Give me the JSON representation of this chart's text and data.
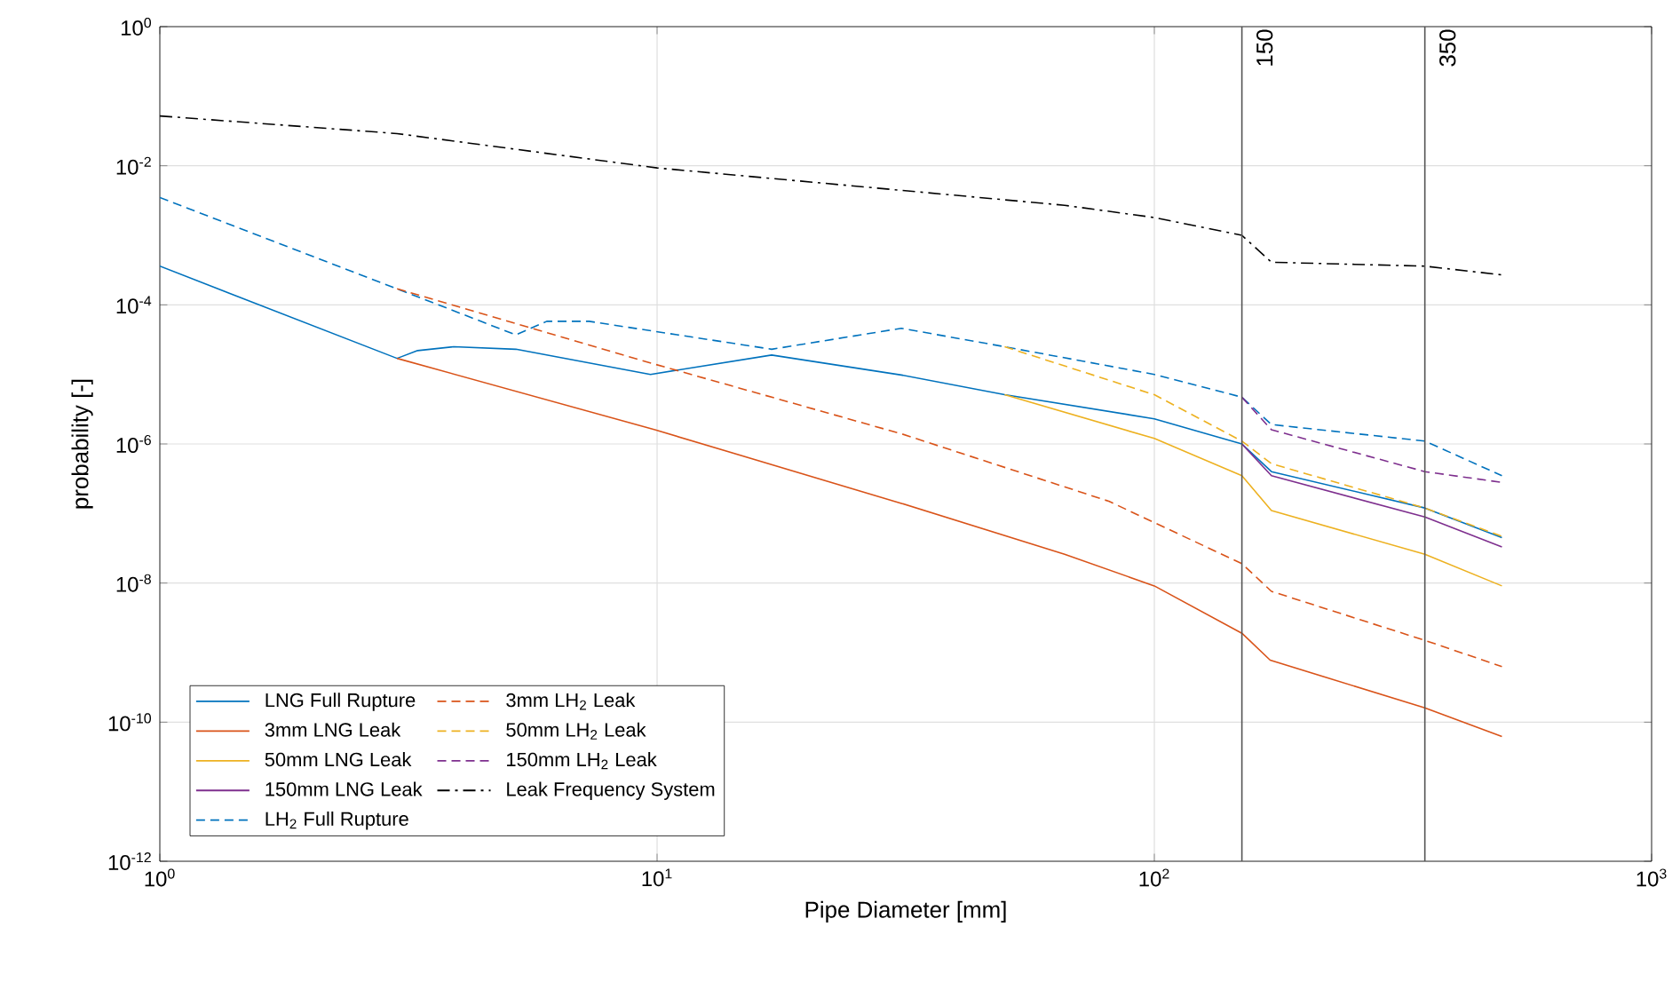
{
  "chart_data": {
    "type": "line",
    "xlabel": "Pipe Diameter [mm]",
    "ylabel": "probability [-]",
    "log": "xy",
    "grid": true,
    "legend": "bottom left",
    "xlim": [
      1,
      1000
    ],
    "ylim": [
      1e-12,
      1
    ],
    "xticks": [
      {
        "value": 1,
        "label": "10$^{0}$"
      },
      {
        "value": 10,
        "label": "10$^{1}$"
      },
      {
        "value": 100,
        "label": "10$^{2}$"
      },
      {
        "value": 1000,
        "label": "10$^{3}$"
      }
    ],
    "yticks": [
      {
        "value": 1e-12,
        "label": "10$^{-12}$"
      },
      {
        "value": 1e-10,
        "label": "10$^{-10}$"
      },
      {
        "value": 1e-08,
        "label": "10$^{-8}$"
      },
      {
        "value": 1e-06,
        "label": "10$^{-6}$"
      },
      {
        "value": 0.0001,
        "label": "10$^{-4}$"
      },
      {
        "value": 0.01,
        "label": "10$^{-2}$"
      },
      {
        "value": 1,
        "label": "10$^{0}$"
      }
    ],
    "ref_lines": [
      {
        "axis": "x",
        "value": 150,
        "label": "150",
        "color": "#555555"
      },
      {
        "axis": "x",
        "value": 350,
        "label": "350",
        "color": "#555555"
      }
    ],
    "series": [
      {
        "name": "LNG Full Rupture",
        "color": "#0072bd",
        "line_style": "solid",
        "x": [
          1,
          3,
          3.3,
          3.9,
          5.2,
          9.7,
          17,
          31,
          50,
          100,
          150,
          172,
          350,
          500
        ],
        "values": [
          0.00036,
          1.7e-05,
          2.2e-05,
          2.5e-05,
          2.3e-05,
          1e-05,
          1.9e-05,
          9.8e-06,
          5.1e-06,
          2.3e-06,
          1e-06,
          4e-07,
          1.2e-07,
          4.5e-08
        ]
      },
      {
        "name": "3mm LNG Leak",
        "color": "#d95319",
        "line_style": "solid",
        "x": [
          3,
          9.9,
          31,
          66,
          100,
          150,
          171,
          350,
          500
        ],
        "values": [
          1.7e-05,
          1.6e-06,
          1.4e-07,
          2.6e-08,
          9.1e-09,
          1.9e-09,
          7.8e-10,
          1.6e-10,
          6.2e-11
        ]
      },
      {
        "name": "50mm LNG Leak",
        "color": "#edb120",
        "line_style": "solid",
        "x": [
          50,
          100,
          150,
          172,
          350,
          500
        ],
        "values": [
          5.1e-06,
          1.2e-06,
          3.5e-07,
          1.1e-07,
          2.6e-08,
          9.1e-09
        ]
      },
      {
        "name": "150mm LNG Leak",
        "color": "#7e2f8e",
        "line_style": "solid",
        "x": [
          150,
          172,
          350,
          500
        ],
        "values": [
          1e-06,
          3.5e-07,
          8.9e-08,
          3.3e-08
        ]
      },
      {
        "name": "LH$_{2}$ Full Rupture",
        "color": "#0072bd",
        "line_style": "dashed",
        "x": [
          1,
          3,
          5.2,
          6,
          7.3,
          17,
          31,
          50,
          100,
          150,
          172,
          350,
          500
        ],
        "values": [
          0.0035,
          0.00017,
          3.7e-05,
          5.8e-05,
          5.8e-05,
          2.3e-05,
          4.6e-05,
          2.5e-05,
          1e-05,
          4.7e-06,
          1.9e-06,
          1.1e-06,
          3.5e-07
        ]
      },
      {
        "name": "3mm LH$_{2}$ Leak",
        "color": "#d95319",
        "line_style": "dashed",
        "x": [
          3,
          9.9,
          31,
          81,
          150,
          172,
          350,
          500
        ],
        "values": [
          0.00017,
          1.4e-05,
          1.4e-06,
          1.5e-07,
          1.9e-08,
          7.6e-09,
          1.5e-09,
          6.3e-10
        ]
      },
      {
        "name": "50mm LH$_{2}$ Leak",
        "color": "#edb120",
        "line_style": "dashed",
        "x": [
          50,
          100,
          150,
          172,
          350,
          500
        ],
        "values": [
          2.5e-05,
          5.1e-06,
          1.1e-06,
          5.2e-07,
          1.2e-07,
          4.7e-08
        ]
      },
      {
        "name": "150mm LH$_{2}$ Leak",
        "color": "#7e2f8e",
        "line_style": "dashed",
        "x": [
          150,
          172,
          350,
          500
        ],
        "values": [
          4.7e-06,
          1.6e-06,
          4e-07,
          2.8e-07
        ]
      },
      {
        "name": "Leak Frequency System",
        "color": "#000000",
        "line_style": "dashdot",
        "x": [
          1,
          3,
          10,
          66,
          100,
          150,
          172,
          350,
          500
        ],
        "values": [
          0.052,
          0.029,
          0.0093,
          0.0027,
          0.0018,
          0.001,
          0.00041,
          0.00036,
          0.00027
        ]
      }
    ]
  }
}
